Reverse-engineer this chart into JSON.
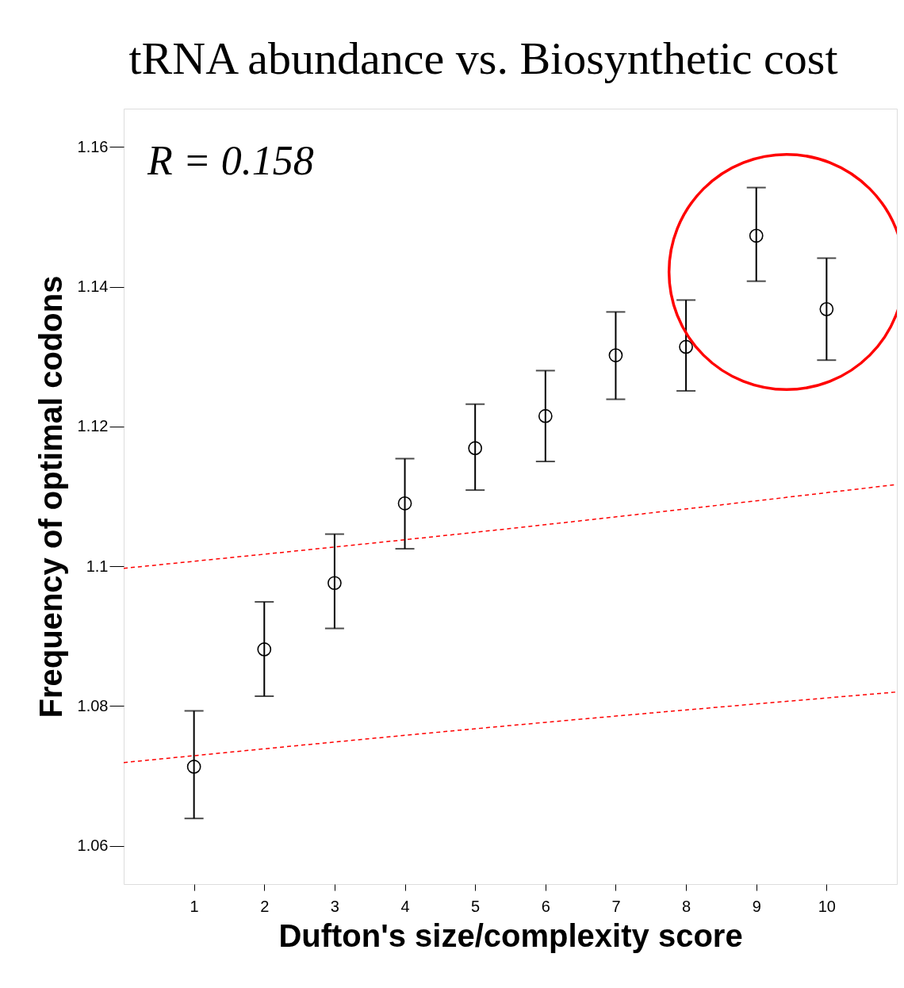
{
  "chart_data": {
    "type": "scatter",
    "title": "tRNA abundance vs. Biosynthetic cost",
    "xlabel": "Dufton's size/complexity score",
    "ylabel": "Frequency of optimal codons",
    "annotations": [
      "R = 0.158"
    ],
    "x": [
      1,
      2,
      3,
      4,
      5,
      6,
      7,
      8,
      9,
      10
    ],
    "xlim": [
      0,
      11
    ],
    "xticks": [
      1,
      2,
      3,
      4,
      5,
      6,
      7,
      8,
      9,
      10
    ],
    "ylim": [
      1.0545,
      1.1655
    ],
    "yticks": [
      1.06,
      1.08,
      1.1,
      1.12,
      1.14,
      1.16
    ],
    "grid": false,
    "series": [
      {
        "color": "#000000",
        "marker": "circle",
        "values": [
          1.0713,
          1.0881,
          1.0976,
          1.109,
          1.1169,
          1.1215,
          1.1302,
          1.1314,
          1.1473,
          1.1368
        ],
        "errors": [
          [
            1.0639,
            1.0793
          ],
          [
            1.0814,
            1.0949
          ],
          [
            1.0911,
            1.1046
          ],
          [
            1.1025,
            1.1154
          ],
          [
            1.1109,
            1.1232
          ],
          [
            1.115,
            1.128
          ],
          [
            1.1239,
            1.1364
          ],
          [
            1.1251,
            1.1381
          ],
          [
            1.1408,
            1.1542
          ],
          [
            1.1295,
            1.1441
          ]
        ]
      },
      {
        "type": "line",
        "color": "#ff0000",
        "line_style": "dashed",
        "marker": "none",
        "x": [
          0,
          5.5,
          11
        ],
        "values": [
          1.0997,
          1.1054,
          1.1117
        ]
      },
      {
        "type": "line",
        "color": "#ff0000",
        "line_style": "dashed",
        "marker": "none",
        "x": [
          0,
          5.5,
          11
        ],
        "values": [
          1.0719,
          1.0772,
          1.082
        ]
      }
    ]
  }
}
